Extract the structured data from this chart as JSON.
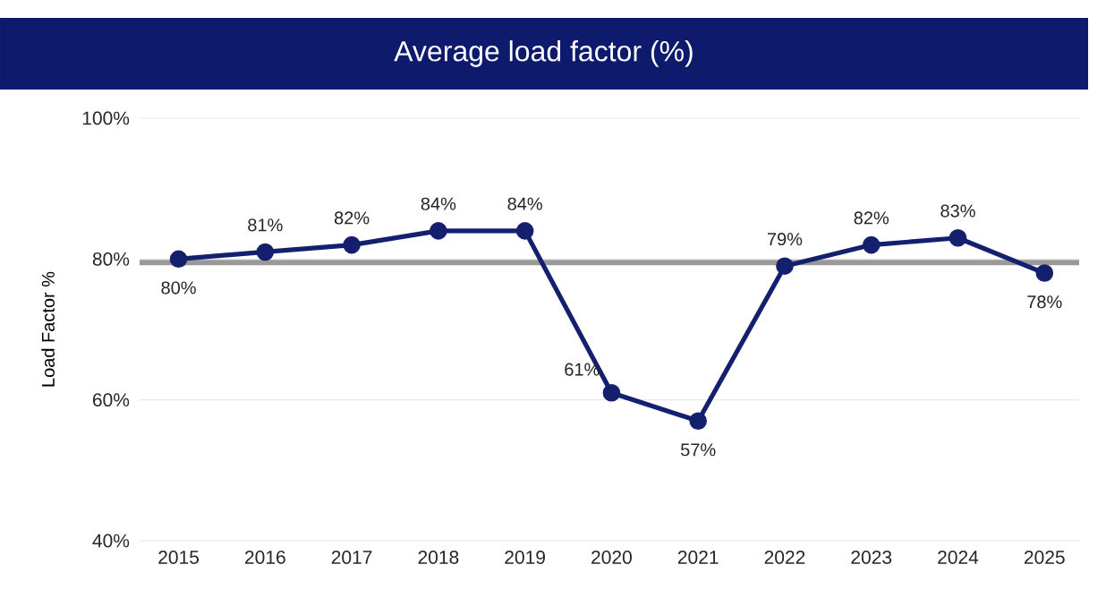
{
  "chart_data": {
    "type": "line",
    "title": "Average load factor (%)",
    "ylabel": "Load Factor %",
    "categories": [
      "2015",
      "2016",
      "2017",
      "2018",
      "2019",
      "2020",
      "2021",
      "2022",
      "2023",
      "2024",
      "2025"
    ],
    "series": [
      {
        "color": "#14206e",
        "values": [
          80,
          81,
          82,
          84,
          84,
          61,
          57,
          79,
          82,
          83,
          78
        ],
        "value_labels": [
          "80%",
          "81%",
          "82%",
          "84%",
          "84%",
          "61%",
          "57%",
          "79%",
          "82%",
          "83%",
          "78%"
        ]
      }
    ],
    "ylim": [
      40,
      100
    ],
    "yticks": [
      {
        "value": 40,
        "label": "40%"
      },
      {
        "value": 60,
        "label": "60%"
      },
      {
        "value": 80,
        "label": "80%"
      },
      {
        "value": 100,
        "label": "100%"
      }
    ],
    "grid": "y",
    "marker": "circle",
    "ref_lines": [
      {
        "axis": "y",
        "value": 79.5,
        "color": "#999999"
      }
    ]
  }
}
